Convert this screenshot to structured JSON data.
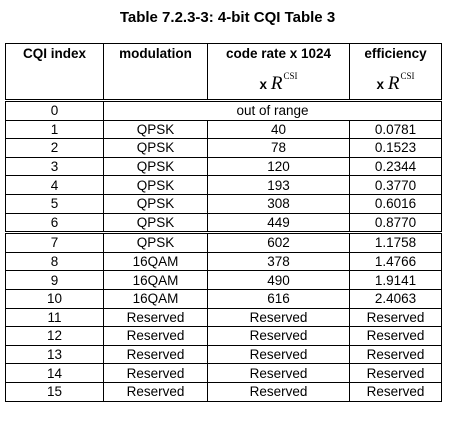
{
  "title": "Table 7.2.3-3: 4-bit CQI Table 3",
  "header": {
    "cqi_index": "CQI index",
    "modulation": "modulation",
    "code_rate": "code rate x 1024",
    "code_rate_sub_prefix": "x",
    "efficiency": "efficiency",
    "efficiency_sub_prefix": "x",
    "r_symbol": "R",
    "r_superscript": "CSI"
  },
  "rows": [
    {
      "index": "0",
      "merged": "out of range"
    },
    {
      "index": "1",
      "modulation": "QPSK",
      "code_rate": "40",
      "efficiency": "0.0781"
    },
    {
      "index": "2",
      "modulation": "QPSK",
      "code_rate": "78",
      "efficiency": "0.1523"
    },
    {
      "index": "3",
      "modulation": "QPSK",
      "code_rate": "120",
      "efficiency": "0.2344"
    },
    {
      "index": "4",
      "modulation": "QPSK",
      "code_rate": "193",
      "efficiency": "0.3770"
    },
    {
      "index": "5",
      "modulation": "QPSK",
      "code_rate": "308",
      "efficiency": "0.6016"
    },
    {
      "index": "6",
      "modulation": "QPSK",
      "code_rate": "449",
      "efficiency": "0.8770"
    },
    {
      "index": "7",
      "modulation": "QPSK",
      "code_rate": "602",
      "efficiency": "1.1758"
    },
    {
      "index": "8",
      "modulation": "16QAM",
      "code_rate": "378",
      "efficiency": "1.4766"
    },
    {
      "index": "9",
      "modulation": "16QAM",
      "code_rate": "490",
      "efficiency": "1.9141"
    },
    {
      "index": "10",
      "modulation": "16QAM",
      "code_rate": "616",
      "efficiency": "2.4063"
    },
    {
      "index": "11",
      "modulation": "Reserved",
      "code_rate": "Reserved",
      "efficiency": "Reserved"
    },
    {
      "index": "12",
      "modulation": "Reserved",
      "code_rate": "Reserved",
      "efficiency": "Reserved"
    },
    {
      "index": "13",
      "modulation": "Reserved",
      "code_rate": "Reserved",
      "efficiency": "Reserved"
    },
    {
      "index": "14",
      "modulation": "Reserved",
      "code_rate": "Reserved",
      "efficiency": "Reserved"
    },
    {
      "index": "15",
      "modulation": "Reserved",
      "code_rate": "Reserved",
      "efficiency": "Reserved"
    }
  ]
}
